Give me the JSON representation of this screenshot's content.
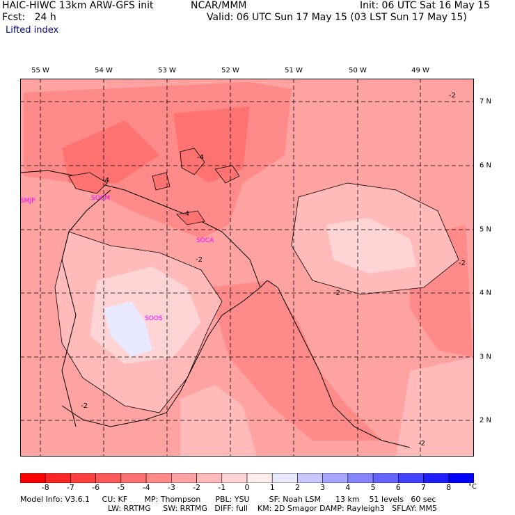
{
  "header": {
    "model": "HAIC-HIWC 13km ARW-GFS init",
    "org": "NCAR/MMM",
    "fcst": "Fcst:   24 h",
    "init": "Init: 06 UTC Sat 16 May 15",
    "valid": "Valid: 06 UTC Sun 17 May 15 (03 LST Sun 17 May 15)"
  },
  "field_title": "Lifted index",
  "lon_labels": [
    "55 W",
    "54 W",
    "53 W",
    "52 W",
    "51 W",
    "50 W",
    "49 W"
  ],
  "lat_labels": [
    "7 N",
    "6 N",
    "5 N",
    "4 N",
    "3 N",
    "2 N"
  ],
  "stations": [
    "SMJP",
    "SOCM",
    "SOCA",
    "SOOS"
  ],
  "contour_labels": [
    "-2",
    "-4",
    "-4",
    "-4",
    "-2",
    "-2",
    "-2",
    "-2",
    "-2"
  ],
  "colorbar": {
    "ticks": [
      "-8",
      "-7",
      "-6",
      "-5",
      "-4",
      "-3",
      "-2",
      "-1",
      "0",
      "1",
      "2",
      "3",
      "4",
      "5",
      "6",
      "7",
      "8"
    ],
    "unit": "°C",
    "colors": [
      "#ff0000",
      "#ff2626",
      "#ff4040",
      "#ff5a5a",
      "#ff7272",
      "#ff8a8a",
      "#ffa2a2",
      "#ffbaba",
      "#ffd4d4",
      "#ffeded",
      "#e8e8ff",
      "#c8c8ff",
      "#a6a6ff",
      "#8585ff",
      "#6464ff",
      "#4242ff",
      "#2020ff",
      "#0000ff"
    ]
  },
  "footer": {
    "line1": "Model Info: V3.6.1     CU: KF       MP: Thompson      PBL: YSU        SF: Noah LSM      13 km    51 levels   60 sec",
    "line2": "LW: RRTMG     SW: RRTMG   DIFF: full    KM: 2D Smagor DAMP: Rayleigh3   SFLAY: MM5"
  }
}
